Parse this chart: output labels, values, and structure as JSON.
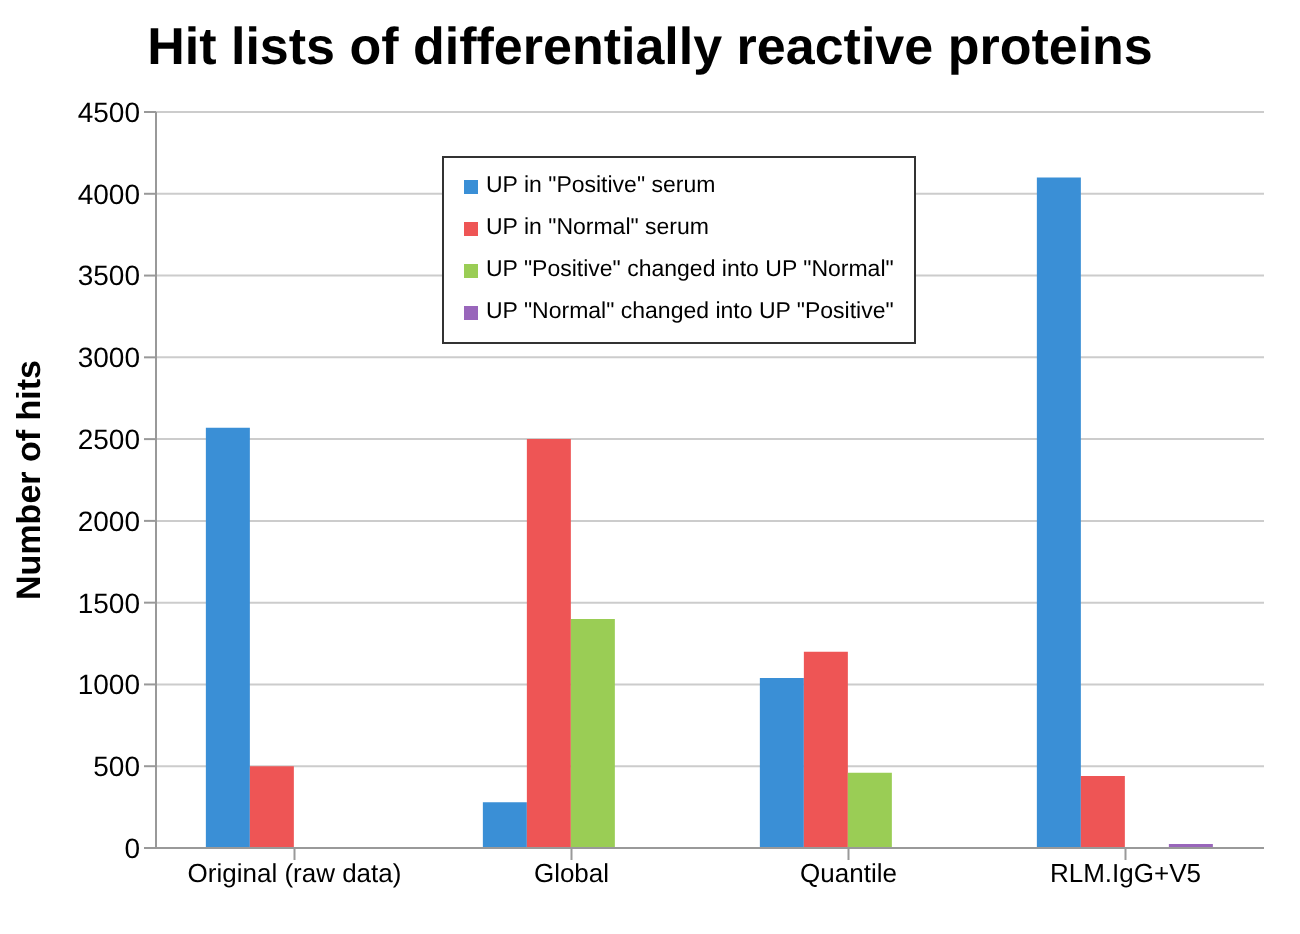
{
  "chart_data": {
    "type": "bar",
    "title": "Hit lists of differentially reactive proteins",
    "ylabel": "Number of hits",
    "categories": [
      "Original (raw data)",
      "Global",
      "Quantile",
      "RLM.IgG+V5"
    ],
    "series": [
      {
        "name": "UP in \"Positive\" serum",
        "color": "#3a8fd6",
        "values": [
          2570,
          280,
          1040,
          4100
        ]
      },
      {
        "name": "UP in \"Normal\" serum",
        "color": "#ee5555",
        "values": [
          500,
          2500,
          1200,
          440
        ]
      },
      {
        "name": "UP \"Positive\" changed into UP \"Normal\"",
        "color": "#9acd55",
        "values": [
          null,
          1400,
          460,
          null
        ]
      },
      {
        "name": "UP \"Normal\" changed into UP \"Positive\"",
        "color": "#9966bb",
        "values": [
          null,
          null,
          null,
          25
        ]
      }
    ],
    "ylim": [
      0,
      4500
    ],
    "yticks": [
      0,
      500,
      1000,
      1500,
      2000,
      2500,
      3000,
      3500,
      4000,
      4500
    ],
    "grid": "y",
    "legend": "top"
  }
}
